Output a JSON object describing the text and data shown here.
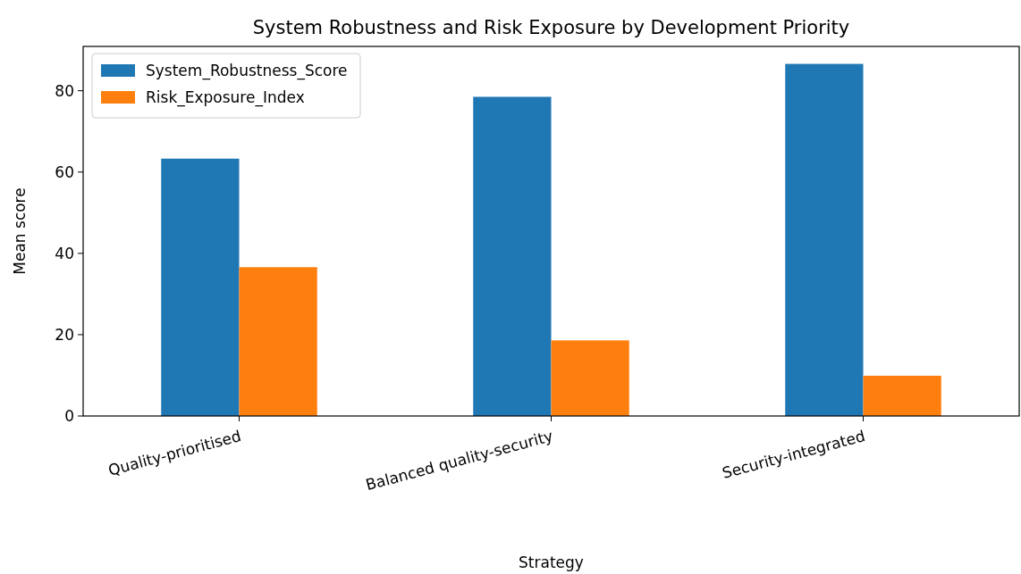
{
  "chart_data": {
    "type": "bar",
    "title": "System Robustness and Risk Exposure by Development Priority",
    "xlabel": "Strategy",
    "ylabel": "Mean score",
    "categories": [
      "Quality-prioritised",
      "Balanced quality-security",
      "Security-integrated"
    ],
    "series": [
      {
        "name": "System_Robustness_Score",
        "color": "#1f77b4",
        "values": [
          63.3,
          78.5,
          86.6
        ]
      },
      {
        "name": "Risk_Exposure_Index",
        "color": "#ff7f0e",
        "values": [
          36.6,
          18.6,
          9.9
        ]
      }
    ],
    "ylim": [
      0,
      90.9
    ],
    "yticks": [
      0,
      20,
      40,
      60,
      80
    ],
    "legend": "top left"
  }
}
